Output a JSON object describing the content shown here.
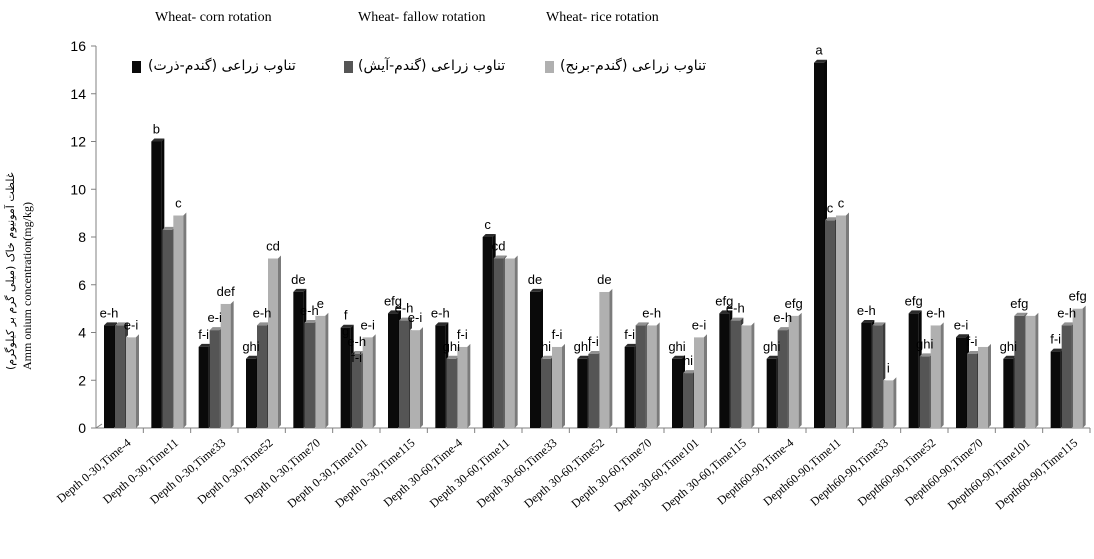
{
  "headers": [
    "Wheat- corn rotation",
    "Wheat- fallow rotation",
    "Wheat- rice rotation"
  ],
  "chart_data": {
    "type": "bar",
    "ylabel_fa": "غلظت آمونیوم خاک (میلی گرم بر کیلوگرم)",
    "ylabel_en": "Amm onium concentration(mg/kg)",
    "ylim": [
      0,
      16
    ],
    "yticks": [
      0,
      2,
      4,
      6,
      8,
      10,
      12,
      14,
      16
    ],
    "categories": [
      "Depth 0-30,Time-4",
      "Depth 0-30,Time11",
      "Depth 0-30,Time33",
      "Depth 0-30,Time52",
      "Depth 0-30,Time70",
      "Depth 0-30,Time101",
      "Depth 0-30,Time115",
      "Depth 30-60,Time-4",
      "Depth 30-60,Time11",
      "Depth 30-60,Time33",
      "Depth 30-60,Time52",
      "Depth 30-60,Time70",
      "Depth 30-60,Time101",
      "Depth 30-60,Time115",
      "Depth60-90,Time-4",
      "Depth60-90,Time11",
      "Depth60-90,Time33",
      "Depth60-90,Time52",
      "Depth60-90,Time70",
      "Depth60-90,Time101",
      "Depth60-90,Time115"
    ],
    "series": [
      {
        "name": "تناوب زراعی (گندم-ذرت)",
        "color": "#0a0a0a",
        "values": [
          4.3,
          12.0,
          3.4,
          2.9,
          5.7,
          4.2,
          4.8,
          4.3,
          8.0,
          5.7,
          2.9,
          3.4,
          2.9,
          4.8,
          2.9,
          15.3,
          4.4,
          4.8,
          3.8,
          2.9,
          3.2
        ]
      },
      {
        "name": "تناوب زراعی (گندم-آیش)",
        "color": "#555555",
        "values": [
          4.3,
          8.3,
          4.1,
          4.3,
          4.4,
          3.1,
          4.5,
          2.9,
          7.1,
          2.9,
          3.1,
          4.3,
          2.3,
          4.5,
          4.1,
          8.7,
          4.3,
          3.0,
          3.1,
          4.7,
          4.3
        ]
      },
      {
        "name": "تناوب زراعی (گندم-برنج)",
        "color": "#b0b0b0",
        "values": [
          3.8,
          8.9,
          5.2,
          7.1,
          4.7,
          3.8,
          4.1,
          3.4,
          7.1,
          3.4,
          5.7,
          4.3,
          3.8,
          4.3,
          4.7,
          8.9,
          2.0,
          4.3,
          3.4,
          4.7,
          5.0
        ]
      }
    ],
    "annotations": [
      {
        "cat": 0,
        "series": 0,
        "text": "e-h"
      },
      {
        "cat": 0,
        "series": 2,
        "text": "e-i"
      },
      {
        "cat": 1,
        "series": 0,
        "text": "b"
      },
      {
        "cat": 1,
        "series": 2,
        "text": "c"
      },
      {
        "cat": 2,
        "series": 0,
        "text": "f-i"
      },
      {
        "cat": 2,
        "series": 1,
        "text": "e-i"
      },
      {
        "cat": 2,
        "series": 2,
        "text": "def"
      },
      {
        "cat": 3,
        "series": 0,
        "text": "ghi"
      },
      {
        "cat": 3,
        "series": 1,
        "text": "e-h"
      },
      {
        "cat": 3,
        "series": 2,
        "text": "cd"
      },
      {
        "cat": 4,
        "series": 0,
        "text": "de"
      },
      {
        "cat": 4,
        "series": 1,
        "text": "e-h"
      },
      {
        "cat": 4,
        "series": 2,
        "text": "e"
      },
      {
        "cat": 5,
        "series": 0,
        "text": "f"
      },
      {
        "cat": 5,
        "series": 0,
        "text": "g"
      },
      {
        "cat": 5,
        "series": 1,
        "text": "e-h"
      },
      {
        "cat": 5,
        "series": 1,
        "text": "f-i"
      },
      {
        "cat": 5,
        "series": 2,
        "text": "e-i"
      },
      {
        "cat": 6,
        "series": 0,
        "text": "efg"
      },
      {
        "cat": 6,
        "series": 1,
        "text": "e-h"
      },
      {
        "cat": 6,
        "series": 2,
        "text": "e-i"
      },
      {
        "cat": 7,
        "series": 0,
        "text": "e-h"
      },
      {
        "cat": 7,
        "series": 1,
        "text": "ghi"
      },
      {
        "cat": 7,
        "series": 2,
        "text": "f-i"
      },
      {
        "cat": 8,
        "series": 0,
        "text": "c"
      },
      {
        "cat": 8,
        "series": 1,
        "text": "cd"
      },
      {
        "cat": 9,
        "series": 0,
        "text": "de"
      },
      {
        "cat": 9,
        "series": 1,
        "text": "hi"
      },
      {
        "cat": 9,
        "series": 2,
        "text": "f-i"
      },
      {
        "cat": 10,
        "series": 0,
        "text": "ghi"
      },
      {
        "cat": 10,
        "series": 1,
        "text": "f-i"
      },
      {
        "cat": 10,
        "series": 2,
        "text": "de"
      },
      {
        "cat": 11,
        "series": 0,
        "text": "f-i"
      },
      {
        "cat": 11,
        "series": 2,
        "text": "e-h"
      },
      {
        "cat": 12,
        "series": 0,
        "text": "ghi"
      },
      {
        "cat": 12,
        "series": 1,
        "text": "hi"
      },
      {
        "cat": 12,
        "series": 2,
        "text": "e-i"
      },
      {
        "cat": 13,
        "series": 0,
        "text": "efg"
      },
      {
        "cat": 13,
        "series": 1,
        "text": "e-h"
      },
      {
        "cat": 14,
        "series": 0,
        "text": "ghi"
      },
      {
        "cat": 14,
        "series": 1,
        "text": "e-h"
      },
      {
        "cat": 14,
        "series": 2,
        "text": "efg"
      },
      {
        "cat": 15,
        "series": 0,
        "text": "a"
      },
      {
        "cat": 15,
        "series": 1,
        "text": "c"
      },
      {
        "cat": 15,
        "series": 2,
        "text": "c"
      },
      {
        "cat": 16,
        "series": 0,
        "text": "e-h"
      },
      {
        "cat": 16,
        "series": 2,
        "text": "i"
      },
      {
        "cat": 17,
        "series": 0,
        "text": "efg"
      },
      {
        "cat": 17,
        "series": 1,
        "text": "ghi"
      },
      {
        "cat": 17,
        "series": 2,
        "text": "e-h"
      },
      {
        "cat": 18,
        "series": 0,
        "text": "e-i"
      },
      {
        "cat": 18,
        "series": 1,
        "text": "f-i"
      },
      {
        "cat": 19,
        "series": 0,
        "text": "ghi"
      },
      {
        "cat": 19,
        "series": 1,
        "text": "efg"
      },
      {
        "cat": 20,
        "series": 0,
        "text": "f-i"
      },
      {
        "cat": 20,
        "series": 1,
        "text": "e-h"
      },
      {
        "cat": 20,
        "series": 2,
        "text": "efg"
      }
    ]
  }
}
